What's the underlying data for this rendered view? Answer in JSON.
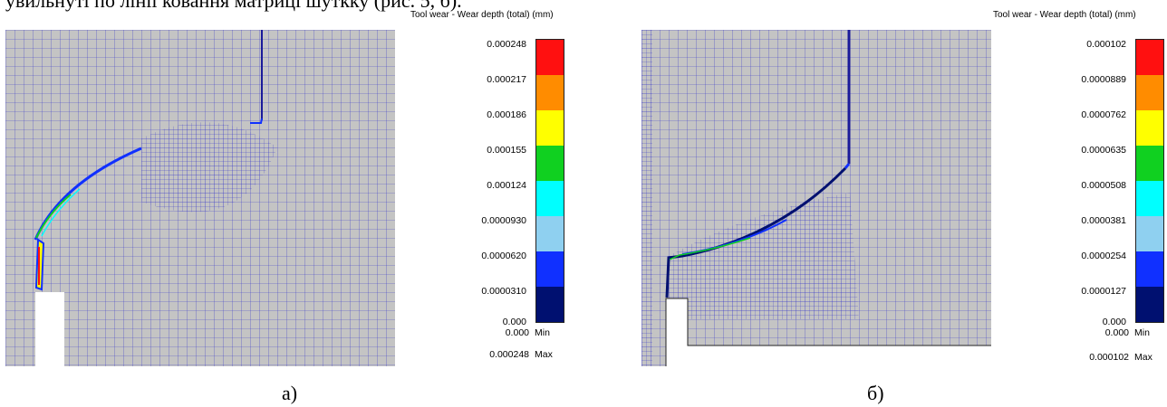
{
  "top_text": "увильнуті по лінії ковання матриці шуткку (рис. 5, б).",
  "panels": [
    {
      "legend_title": "Tool wear - Wear depth (total) (mm)",
      "ticks": [
        "0.000248",
        "0.000217",
        "0.000186",
        "0.000155",
        "0.000124",
        "0.0000930",
        "0.0000620",
        "0.0000310",
        "0.000"
      ],
      "min_value": "0.000",
      "min_tag": "Min",
      "max_value": "0.000248",
      "max_tag": "Max",
      "caption": "а)"
    },
    {
      "legend_title": "Tool wear - Wear depth (total) (mm)",
      "ticks": [
        "0.000102",
        "0.0000889",
        "0.0000762",
        "0.0000635",
        "0.0000508",
        "0.0000381",
        "0.0000254",
        "0.0000127",
        "0.000"
      ],
      "min_value": "0.000",
      "min_tag": "Min",
      "max_value": "0.000102",
      "max_tag": "Max",
      "caption": "б)"
    }
  ],
  "colors": {
    "bands": [
      "#ff1010",
      "#ff8c00",
      "#ffff00",
      "#10d020",
      "#00ffff",
      "#8fd0f0",
      "#1030ff",
      "#001070"
    ],
    "mesh_bg": "#c4c4c4",
    "mesh_line": "#3c3cc8"
  }
}
